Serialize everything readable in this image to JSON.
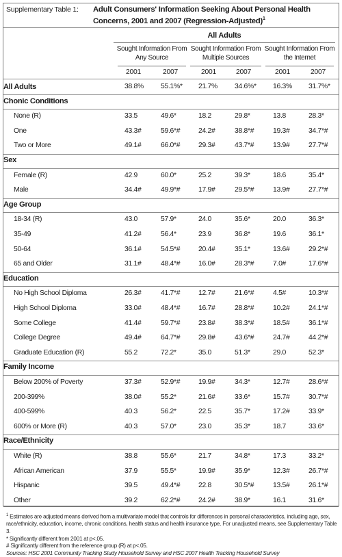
{
  "header": {
    "label": "Supplementary Table 1:",
    "title": "Adult Consumers' Information Seeking About Personal Health Concerns, 2001 and 2007 (Regression-Adjusted)",
    "title_sup": "1",
    "all_adults": "All Adults"
  },
  "column_groups": [
    {
      "label": "Sought Information From Any Source"
    },
    {
      "label": "Sought Information From Multiple Sources"
    },
    {
      "label": "Sought Information From the Internet"
    }
  ],
  "years": [
    "2001",
    "2007",
    "2001",
    "2007",
    "2001",
    "2007"
  ],
  "rows": [
    {
      "type": "total",
      "label": "All Adults",
      "values": [
        "38.8%",
        "55.1%*",
        "21.7%",
        "34.6%*",
        "16.3%",
        "31.7%*"
      ]
    },
    {
      "type": "section",
      "label": "Chonic Conditions"
    },
    {
      "type": "data",
      "label": "None (R)",
      "values": [
        "33.5",
        "49.6*",
        "18.2",
        "29.8*",
        "13.8",
        "28.3*"
      ]
    },
    {
      "type": "data",
      "label": "One",
      "values": [
        "43.3#",
        "59.6*#",
        "24.2#",
        "38.8*#",
        "19.3#",
        "34.7*#"
      ]
    },
    {
      "type": "data",
      "label": "Two or More",
      "values": [
        "49.1#",
        "66.0*#",
        "29.3#",
        "43.7*#",
        "13.9#",
        "27.7*#"
      ]
    },
    {
      "type": "section",
      "label": "Sex"
    },
    {
      "type": "data",
      "label": "Female (R)",
      "values": [
        "42.9",
        "60.0*",
        "25.2",
        "39.3*",
        "18.6",
        "35.4*"
      ]
    },
    {
      "type": "data",
      "label": "Male",
      "values": [
        "34.4#",
        "49.9*#",
        "17.9#",
        "29.5*#",
        "13.9#",
        "27.7*#"
      ]
    },
    {
      "type": "section",
      "label": "Age Group"
    },
    {
      "type": "data",
      "label": "18-34 (R)",
      "values": [
        "43.0",
        "57.9*",
        "24.0",
        "35.6*",
        "20.0",
        "36.3*"
      ]
    },
    {
      "type": "data",
      "label": "35-49",
      "values": [
        "41.2#",
        "56.4*",
        "23.9",
        "36.8*",
        "19.6",
        "36.1*"
      ]
    },
    {
      "type": "data",
      "label": "50-64",
      "values": [
        "36.1#",
        "54.5*#",
        "20.4#",
        "35.1*",
        "13.6#",
        "29.2*#"
      ]
    },
    {
      "type": "data",
      "label": "65 and Older",
      "values": [
        "31.1#",
        "48.4*#",
        "16.0#",
        "28.3*#",
        "7.0#",
        "17.6*#"
      ]
    },
    {
      "type": "section",
      "label": "Education"
    },
    {
      "type": "data",
      "label": "No High School Diploma",
      "values": [
        "26.3#",
        "41.7*#",
        "12.7#",
        "21.6*#",
        "4.5#",
        "10.3*#"
      ]
    },
    {
      "type": "data",
      "label": "High School Diploma",
      "values": [
        "33.0#",
        "48.4*#",
        "16.7#",
        "28.8*#",
        "10.2#",
        "24.1*#"
      ]
    },
    {
      "type": "data",
      "label": "Some College",
      "values": [
        "41.4#",
        "59.7*#",
        "23.8#",
        "38.3*#",
        "18.5#",
        "36.1*#"
      ]
    },
    {
      "type": "data",
      "label": "College Degree",
      "values": [
        "49.4#",
        "64.7*#",
        "29.8#",
        "43.6*#",
        "24.7#",
        "44.2*#"
      ]
    },
    {
      "type": "data",
      "label": "Graduate Education (R)",
      "values": [
        "55.2",
        "72.2*",
        "35.0",
        "51.3*",
        "29.0",
        "52.3*"
      ]
    },
    {
      "type": "section",
      "label": "Family Income"
    },
    {
      "type": "data",
      "label": "Below 200% of Poverty",
      "values": [
        "37.3#",
        "52.9*#",
        "19.9#",
        "34.3*",
        "12.7#",
        "28.6*#"
      ]
    },
    {
      "type": "data",
      "label": "200-399%",
      "values": [
        "38.0#",
        "55.2*",
        "21.6#",
        "33.6*",
        "15.7#",
        "30.7*#"
      ]
    },
    {
      "type": "data",
      "label": "400-599%",
      "values": [
        "40.3",
        "56.2*",
        "22.5",
        "35.7*",
        "17.2#",
        "33.9*"
      ]
    },
    {
      "type": "data",
      "label": "600% or More (R)",
      "values": [
        "40.3",
        "57.0*",
        "23.0",
        "35.3*",
        "18.7",
        "33.6*"
      ]
    },
    {
      "type": "section",
      "label": "Race/Ethnicity"
    },
    {
      "type": "data",
      "label": "White (R)",
      "values": [
        "38.8",
        "55.6*",
        "21.7",
        "34.8*",
        "17.3",
        "33.2*"
      ]
    },
    {
      "type": "data",
      "label": "African American",
      "values": [
        "37.9",
        "55.5*",
        "19.9#",
        "35.9*",
        "12.3#",
        "26.7*#"
      ]
    },
    {
      "type": "data",
      "label": "Hispanic",
      "values": [
        "39.5",
        "49.4*#",
        "22.8",
        "30.5*#",
        "13.5#",
        "26.1*#"
      ]
    },
    {
      "type": "data",
      "label": "Other",
      "values": [
        "39.2",
        "62.2*#",
        "24.2#",
        "38.9*",
        "16.1",
        "31.6*"
      ]
    }
  ],
  "notes": {
    "note1_sup": "1",
    "note1": "Estimates are adjusted means derived from a multivariate model that controls for differences in personal characteristics, including age, sex, race/ethnicity, education, income, chronic conditions, health status and health insurance type. For unadjusted means, see Supplementary Table 3.",
    "note2": "* Significantly different from 2001 at p<.05.",
    "note3": "# Significantly different from the reference group (R) at p<.05.",
    "sources": "Sources: HSC 2001 Community Tracking Study Household Survey and HSC 2007 Health Tracking Household Survey"
  }
}
